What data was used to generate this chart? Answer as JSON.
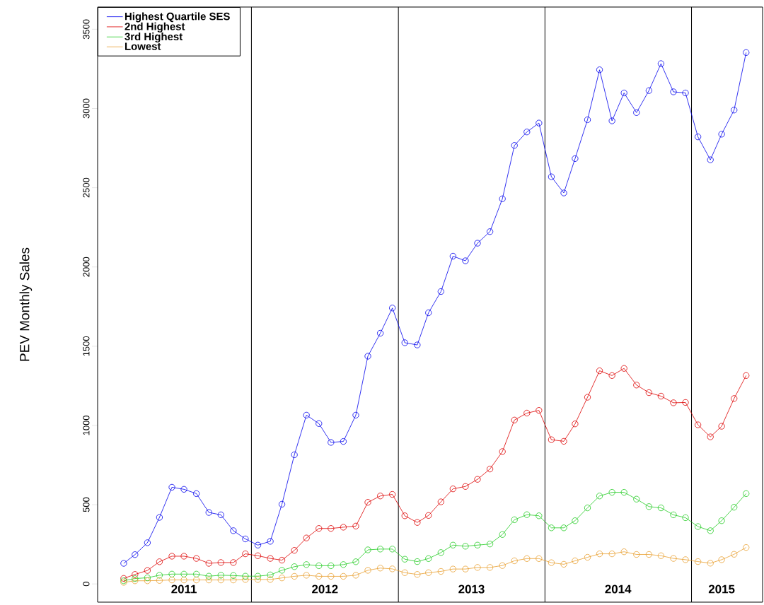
{
  "chart_data": {
    "type": "line",
    "ylabel": "PEV Monthly Sales",
    "x": [
      "2011-02",
      "2011-03",
      "2011-04",
      "2011-05",
      "2011-06",
      "2011-07",
      "2011-08",
      "2011-09",
      "2011-10",
      "2011-11",
      "2011-12",
      "2012-01",
      "2012-02",
      "2012-03",
      "2012-04",
      "2012-05",
      "2012-06",
      "2012-07",
      "2012-08",
      "2012-09",
      "2012-10",
      "2012-11",
      "2012-12",
      "2013-01",
      "2013-02",
      "2013-03",
      "2013-04",
      "2013-05",
      "2013-06",
      "2013-07",
      "2013-08",
      "2013-09",
      "2013-10",
      "2013-11",
      "2013-12",
      "2014-01",
      "2014-02",
      "2014-03",
      "2014-04",
      "2014-05",
      "2014-06",
      "2014-07",
      "2014-08",
      "2014-09",
      "2014-10",
      "2014-11",
      "2014-12",
      "2015-01",
      "2015-02",
      "2015-03",
      "2015-04",
      "2015-05"
    ],
    "series": [
      {
        "name": "Highest Quartile SES",
        "color": "#0000ee",
        "values": [
          130,
          185,
          260,
          420,
          610,
          597,
          570,
          451,
          436,
          336,
          284,
          245,
          269,
          503,
          815,
          1065,
          1012,
          893,
          899,
          1065,
          1437,
          1582,
          1741,
          1522,
          1508,
          1711,
          1845,
          2068,
          2039,
          2150,
          2223,
          2430,
          2767,
          2852,
          2908,
          2569,
          2467,
          2684,
          2929,
          3244,
          2922,
          3098,
          2974,
          3113,
          3283,
          3105,
          3098,
          2821,
          2676,
          2838,
          2990,
          3353
        ]
      },
      {
        "name": "2nd Highest",
        "color": "#dd0000",
        "values": [
          35,
          60,
          85,
          140,
          175,
          175,
          161,
          130,
          135,
          135,
          190,
          178,
          161,
          150,
          212,
          290,
          350,
          350,
          358,
          365,
          515,
          555,
          565,
          430,
          388,
          432,
          518,
          600,
          615,
          660,
          725,
          835,
          1034,
          1078,
          1095,
          910,
          900,
          1010,
          1178,
          1345,
          1315,
          1360,
          1255,
          1207,
          1185,
          1143,
          1145,
          1004,
          928,
          995,
          1170,
          1315
        ]
      },
      {
        "name": "3rd Highest",
        "color": "#22cc22",
        "values": [
          20,
          34,
          39,
          55,
          62,
          62,
          62,
          49,
          55,
          53,
          49,
          49,
          57,
          86,
          109,
          122,
          115,
          115,
          122,
          140,
          215,
          220,
          220,
          156,
          141,
          160,
          198,
          245,
          238,
          245,
          252,
          312,
          405,
          437,
          430,
          354,
          354,
          399,
          480,
          555,
          578,
          578,
          535,
          488,
          480,
          436,
          418,
          362,
          336,
          399,
          484,
          570
        ]
      },
      {
        "name": "Lowest",
        "color": "#e8a030",
        "values": [
          10,
          20,
          20,
          22,
          25,
          25,
          25,
          25,
          25,
          25,
          28,
          28,
          28,
          38,
          48,
          55,
          48,
          48,
          48,
          55,
          86,
          100,
          95,
          71,
          60,
          71,
          79,
          94,
          94,
          104,
          104,
          116,
          146,
          160,
          160,
          134,
          124,
          146,
          168,
          190,
          190,
          203,
          186,
          186,
          178,
          161,
          153,
          141,
          131,
          153,
          187,
          230
        ]
      }
    ],
    "xlim": [
      "2010-11-28",
      "2015-06-11"
    ],
    "ylim": [
      -115,
      3640
    ],
    "xticks": [
      {
        "value": "2011-07-01",
        "label": "2011"
      },
      {
        "value": "2012-06-16",
        "label": "2012"
      },
      {
        "value": "2013-06-16",
        "label": "2013"
      },
      {
        "value": "2014-06-16",
        "label": "2014"
      },
      {
        "value": "2015-03-01",
        "label": "2015"
      }
    ],
    "yticks": [
      0,
      500,
      1000,
      1500,
      2000,
      2500,
      3000,
      3500
    ],
    "ref_lines": [
      {
        "axis": "x",
        "value": "2011-12-16",
        "color": "#000000"
      },
      {
        "axis": "x",
        "value": "2012-12-16",
        "color": "#000000"
      },
      {
        "axis": "x",
        "value": "2013-12-16",
        "color": "#000000"
      },
      {
        "axis": "x",
        "value": "2014-12-16",
        "color": "#000000"
      }
    ],
    "legend": "top left",
    "marker": "circle",
    "line_style": "solid"
  }
}
